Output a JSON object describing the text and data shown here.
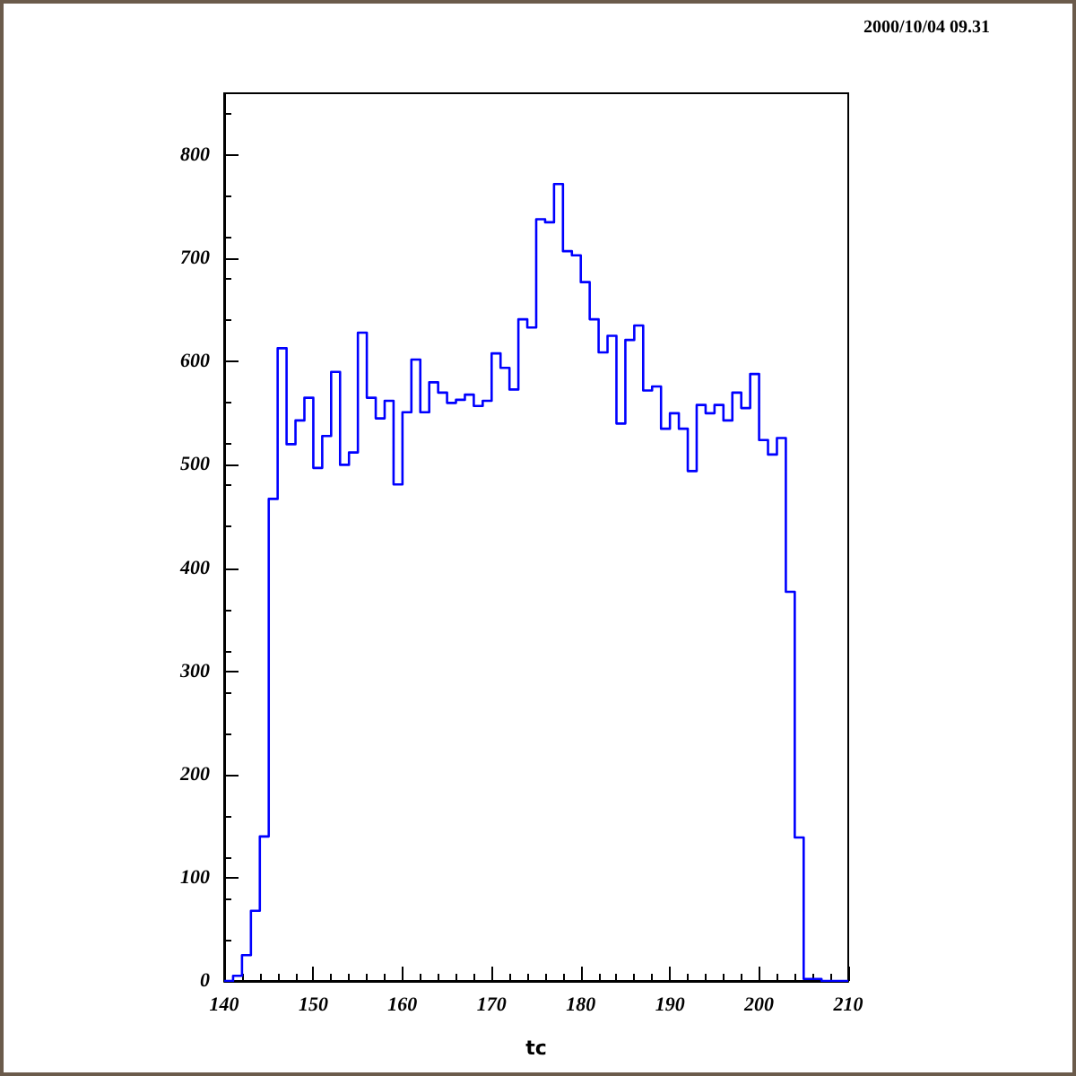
{
  "chart_data": {
    "type": "histogram",
    "xlabel": "tc",
    "annotations": [
      "2000/10/04  09.31"
    ],
    "color": "#0000ff",
    "bins": [
      140,
      141,
      142,
      143,
      144,
      145,
      146,
      147,
      148,
      149,
      150,
      151,
      152,
      153,
      154,
      155,
      156,
      157,
      158,
      159,
      160,
      161,
      162,
      163,
      164,
      165,
      166,
      167,
      168,
      169,
      170,
      171,
      172,
      173,
      174,
      175,
      176,
      177,
      178,
      179,
      180,
      181,
      182,
      183,
      184,
      185,
      186,
      187,
      188,
      189,
      190,
      191,
      192,
      193,
      194,
      195,
      196,
      197,
      198,
      199,
      200,
      201,
      202,
      203,
      204,
      205,
      206,
      207,
      208,
      209,
      210
    ],
    "values": [
      0,
      5,
      25,
      68,
      140,
      467,
      613,
      520,
      543,
      565,
      497,
      528,
      590,
      500,
      512,
      628,
      565,
      545,
      562,
      481,
      551,
      602,
      551,
      580,
      570,
      560,
      563,
      568,
      557,
      562,
      608,
      594,
      573,
      641,
      633,
      738,
      735,
      772,
      707,
      703,
      677,
      641,
      609,
      625,
      540,
      621,
      635,
      572,
      576,
      535,
      550,
      535,
      494,
      558,
      550,
      558,
      543,
      570,
      555,
      588,
      524,
      510,
      526,
      377,
      139,
      2,
      2,
      0,
      0,
      0
    ],
    "xlim": [
      140,
      210
    ],
    "xticks": [
      140,
      150,
      160,
      170,
      180,
      190,
      200,
      210
    ],
    "ylim": [
      0,
      860
    ],
    "yticks": [
      0,
      100,
      200,
      300,
      400,
      500,
      600,
      700,
      800
    ],
    "grid": false
  }
}
